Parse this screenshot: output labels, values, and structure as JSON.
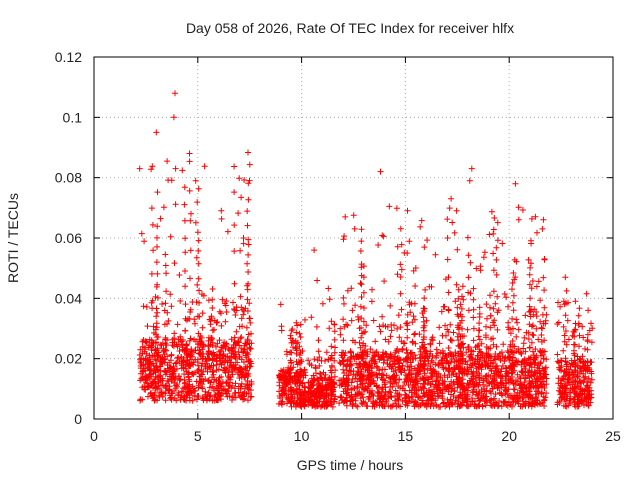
{
  "chart_data": {
    "type": "scatter",
    "title": "Day 058 of 2026, Rate Of TEC Index for receiver hlfx",
    "xlabel": "GPS time / hours",
    "ylabel": "ROTI / TECUs",
    "xlim": [
      0,
      25
    ],
    "ylim": [
      0,
      0.12
    ],
    "x_ticks": [
      0,
      5,
      10,
      15,
      20,
      25
    ],
    "x_tick_labels": [
      "0",
      "5",
      "10",
      "15",
      "20",
      "25"
    ],
    "y_ticks": [
      0,
      0.02,
      0.04,
      0.06,
      0.08,
      0.1,
      0.12
    ],
    "y_tick_labels": [
      "0",
      "0.02",
      "0.04",
      "0.06",
      "0.08",
      "0.1",
      "0.12"
    ],
    "grid": true,
    "marker": "+",
    "color": "#ff0000",
    "series": [
      {
        "name": "ROTI",
        "segments": [
          {
            "x_start": 2.2,
            "x_end": 7.6,
            "typical": [
              0.006,
              0.04
            ],
            "peak": 0.108
          },
          {
            "x_start": 8.9,
            "x_end": 10.2,
            "typical": [
              0.004,
              0.025
            ],
            "peak": 0.038
          },
          {
            "x_start": 10.3,
            "x_end": 11.6,
            "typical": [
              0.004,
              0.02
            ],
            "peak": 0.056
          },
          {
            "x_start": 11.8,
            "x_end": 21.8,
            "typical": [
              0.004,
              0.035
            ],
            "peak": 0.083
          },
          {
            "x_start": 22.3,
            "x_end": 24.0,
            "typical": [
              0.004,
              0.03
            ],
            "peak": 0.047
          }
        ],
        "notable_points": [
          {
            "x": 3.9,
            "y": 0.108
          },
          {
            "x": 3.85,
            "y": 0.1
          },
          {
            "x": 3.0,
            "y": 0.095
          },
          {
            "x": 4.6,
            "y": 0.088
          },
          {
            "x": 2.2,
            "y": 0.083
          },
          {
            "x": 13.8,
            "y": 0.082
          },
          {
            "x": 18.2,
            "y": 0.083
          },
          {
            "x": 18.1,
            "y": 0.079
          },
          {
            "x": 20.3,
            "y": 0.078
          },
          {
            "x": 4.9,
            "y": 0.079
          },
          {
            "x": 17.2,
            "y": 0.073
          },
          {
            "x": 7.2,
            "y": 0.06
          },
          {
            "x": 12.1,
            "y": 0.067
          },
          {
            "x": 15.1,
            "y": 0.069
          },
          {
            "x": 10.6,
            "y": 0.056
          },
          {
            "x": 21.6,
            "y": 0.063
          },
          {
            "x": 22.7,
            "y": 0.047
          },
          {
            "x": 9.0,
            "y": 0.038
          },
          {
            "x": 23.8,
            "y": 0.036
          }
        ]
      }
    ]
  }
}
